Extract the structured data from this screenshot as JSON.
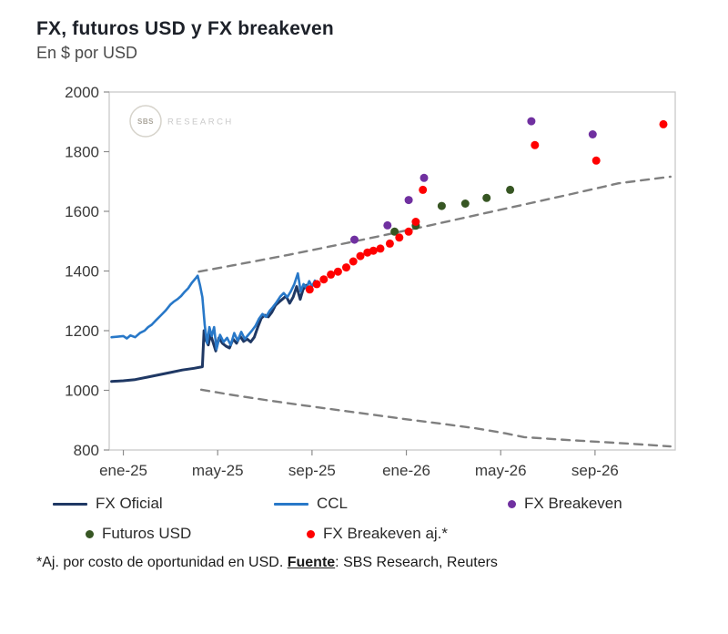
{
  "header": {
    "title": "FX, futuros USD y FX breakeven",
    "subtitle": "En $ por USD"
  },
  "footnote": {
    "prefix": "*Aj. por costo de oportunidad en USD. ",
    "fuente_label": "Fuente",
    "suffix": ": SBS Research, Reuters"
  },
  "legend": {
    "rows": [
      [
        {
          "label": "FX Oficial",
          "swatch": "line",
          "color": "#1F3864"
        },
        {
          "label": "CCL",
          "swatch": "line",
          "color": "#2878C8"
        },
        {
          "label": "FX Breakeven",
          "swatch": "dot",
          "color": "#7030A0"
        }
      ],
      [
        {
          "label": "Futuros USD",
          "swatch": "dot",
          "color": "#375623"
        },
        {
          "label": "FX Breakeven aj.*",
          "swatch": "dot",
          "color": "#FF0000"
        }
      ]
    ]
  },
  "chart_data": {
    "type": "line",
    "title": "FX, futuros USD y FX breakeven",
    "subtitle": "En $ por USD",
    "grid": false,
    "legend_position": "bottom",
    "watermark": {
      "badge": "SBS",
      "label": "RESEARCH"
    },
    "x_axis": {
      "label": "",
      "unit": "months since ene-25",
      "range": [
        -0.6,
        23.4
      ],
      "ticks": [
        {
          "pos": 0,
          "label": "ene-25"
        },
        {
          "pos": 4,
          "label": "may-25"
        },
        {
          "pos": 8,
          "label": "sep-25"
        },
        {
          "pos": 12,
          "label": "ene-26"
        },
        {
          "pos": 16,
          "label": "may-26"
        },
        {
          "pos": 20,
          "label": "sep-26"
        }
      ]
    },
    "y_axis": {
      "label": "En $ por USD",
      "range": [
        800,
        2000
      ],
      "ticks": [
        800,
        1000,
        1200,
        1400,
        1600,
        1800,
        2000
      ]
    },
    "series": [
      {
        "name": "Banda superior",
        "mode": "dashed-line",
        "color": "#7f7f7f",
        "width": 2.4,
        "points": [
          [
            3.2,
            1398
          ],
          [
            5,
            1424
          ],
          [
            7,
            1454
          ],
          [
            9,
            1486
          ],
          [
            11,
            1519
          ],
          [
            13,
            1553
          ],
          [
            15,
            1588
          ],
          [
            17,
            1623
          ],
          [
            19,
            1658
          ],
          [
            21,
            1694
          ],
          [
            23.2,
            1716
          ]
        ]
      },
      {
        "name": "Banda inferior",
        "mode": "dashed-line",
        "color": "#7f7f7f",
        "width": 2.4,
        "points": [
          [
            3.3,
            1002
          ],
          [
            4.5,
            986
          ],
          [
            6,
            968
          ],
          [
            7.5,
            951
          ],
          [
            9,
            935
          ],
          [
            10.5,
            919
          ],
          [
            12,
            903
          ],
          [
            13.5,
            888
          ],
          [
            15,
            872
          ],
          [
            16.2,
            856
          ],
          [
            17,
            843
          ],
          [
            18.5,
            835
          ],
          [
            20,
            828
          ],
          [
            21.5,
            821
          ],
          [
            23.2,
            812
          ]
        ]
      },
      {
        "name": "FX Oficial",
        "mode": "line",
        "color": "#1F3864",
        "width": 3,
        "points": [
          [
            -0.5,
            1030
          ],
          [
            0,
            1032
          ],
          [
            0.5,
            1036
          ],
          [
            1,
            1044
          ],
          [
            1.5,
            1052
          ],
          [
            2,
            1060
          ],
          [
            2.5,
            1068
          ],
          [
            3,
            1074
          ],
          [
            3.35,
            1079
          ],
          [
            3.42,
            1200
          ],
          [
            3.5,
            1168
          ],
          [
            3.6,
            1152
          ],
          [
            3.7,
            1188
          ],
          [
            3.8,
            1162
          ],
          [
            3.92,
            1132
          ],
          [
            4.05,
            1176
          ],
          [
            4.2,
            1158
          ],
          [
            4.35,
            1148
          ],
          [
            4.5,
            1142
          ],
          [
            4.65,
            1172
          ],
          [
            4.8,
            1158
          ],
          [
            4.95,
            1182
          ],
          [
            5.1,
            1164
          ],
          [
            5.25,
            1172
          ],
          [
            5.4,
            1162
          ],
          [
            5.55,
            1178
          ],
          [
            5.7,
            1212
          ],
          [
            5.85,
            1242
          ],
          [
            6,
            1252
          ],
          [
            6.15,
            1246
          ],
          [
            6.3,
            1262
          ],
          [
            6.45,
            1285
          ],
          [
            6.6,
            1296
          ],
          [
            6.75,
            1306
          ],
          [
            6.9,
            1316
          ],
          [
            7.05,
            1292
          ],
          [
            7.2,
            1312
          ],
          [
            7.35,
            1348
          ],
          [
            7.5,
            1305
          ],
          [
            7.62,
            1338
          ],
          [
            7.75,
            1352
          ],
          [
            7.9,
            1342
          ],
          [
            8,
            1352
          ]
        ]
      },
      {
        "name": "CCL",
        "mode": "line",
        "color": "#2878C8",
        "width": 2.6,
        "points": [
          [
            -0.5,
            1178
          ],
          [
            0,
            1182
          ],
          [
            0.15,
            1174
          ],
          [
            0.3,
            1184
          ],
          [
            0.5,
            1178
          ],
          [
            0.7,
            1192
          ],
          [
            0.9,
            1200
          ],
          [
            1.05,
            1212
          ],
          [
            1.2,
            1220
          ],
          [
            1.4,
            1236
          ],
          [
            1.6,
            1252
          ],
          [
            1.8,
            1268
          ],
          [
            2,
            1288
          ],
          [
            2.15,
            1298
          ],
          [
            2.3,
            1306
          ],
          [
            2.45,
            1316
          ],
          [
            2.6,
            1330
          ],
          [
            2.75,
            1342
          ],
          [
            2.9,
            1360
          ],
          [
            3.05,
            1374
          ],
          [
            3.15,
            1384
          ],
          [
            3.25,
            1352
          ],
          [
            3.35,
            1312
          ],
          [
            3.45,
            1218
          ],
          [
            3.55,
            1158
          ],
          [
            3.65,
            1212
          ],
          [
            3.75,
            1182
          ],
          [
            3.85,
            1212
          ],
          [
            3.95,
            1138
          ],
          [
            4.1,
            1186
          ],
          [
            4.25,
            1162
          ],
          [
            4.4,
            1176
          ],
          [
            4.55,
            1152
          ],
          [
            4.7,
            1192
          ],
          [
            4.85,
            1166
          ],
          [
            5,
            1196
          ],
          [
            5.15,
            1172
          ],
          [
            5.3,
            1186
          ],
          [
            5.45,
            1200
          ],
          [
            5.6,
            1216
          ],
          [
            5.75,
            1240
          ],
          [
            5.9,
            1256
          ],
          [
            6.05,
            1246
          ],
          [
            6.2,
            1266
          ],
          [
            6.35,
            1280
          ],
          [
            6.5,
            1296
          ],
          [
            6.65,
            1314
          ],
          [
            6.8,
            1326
          ],
          [
            6.95,
            1312
          ],
          [
            7.1,
            1332
          ],
          [
            7.25,
            1356
          ],
          [
            7.4,
            1392
          ],
          [
            7.52,
            1332
          ],
          [
            7.64,
            1356
          ],
          [
            7.76,
            1342
          ],
          [
            7.88,
            1366
          ],
          [
            8,
            1348
          ],
          [
            8.12,
            1368
          ],
          [
            8.22,
            1358
          ]
        ]
      },
      {
        "name": "Futuros USD",
        "mode": "scatter",
        "color": "#375623",
        "radius": 4.5,
        "points": [
          [
            11.5,
            1532
          ],
          [
            12.4,
            1552
          ],
          [
            13.5,
            1618
          ],
          [
            14.5,
            1626
          ],
          [
            15.4,
            1645
          ],
          [
            16.4,
            1672
          ]
        ]
      },
      {
        "name": "FX Breakeven",
        "mode": "scatter",
        "color": "#7030A0",
        "radius": 4.5,
        "points": [
          [
            9.8,
            1505
          ],
          [
            11.2,
            1553
          ],
          [
            12.1,
            1638
          ],
          [
            12.75,
            1712
          ],
          [
            17.3,
            1902
          ],
          [
            19.9,
            1858
          ]
        ]
      },
      {
        "name": "FX Breakeven aj.*",
        "mode": "scatter",
        "color": "#FF0000",
        "radius": 4.5,
        "points": [
          [
            7.9,
            1338
          ],
          [
            8.2,
            1356
          ],
          [
            8.5,
            1372
          ],
          [
            8.8,
            1388
          ],
          [
            9.1,
            1398
          ],
          [
            9.45,
            1412
          ],
          [
            9.75,
            1432
          ],
          [
            10.05,
            1450
          ],
          [
            10.35,
            1462
          ],
          [
            10.6,
            1468
          ],
          [
            10.9,
            1475
          ],
          [
            11.3,
            1492
          ],
          [
            11.7,
            1512
          ],
          [
            12.1,
            1532
          ],
          [
            12.4,
            1565
          ],
          [
            12.7,
            1672
          ],
          [
            17.45,
            1822
          ],
          [
            20.05,
            1770
          ],
          [
            22.9,
            1892
          ]
        ]
      }
    ]
  }
}
